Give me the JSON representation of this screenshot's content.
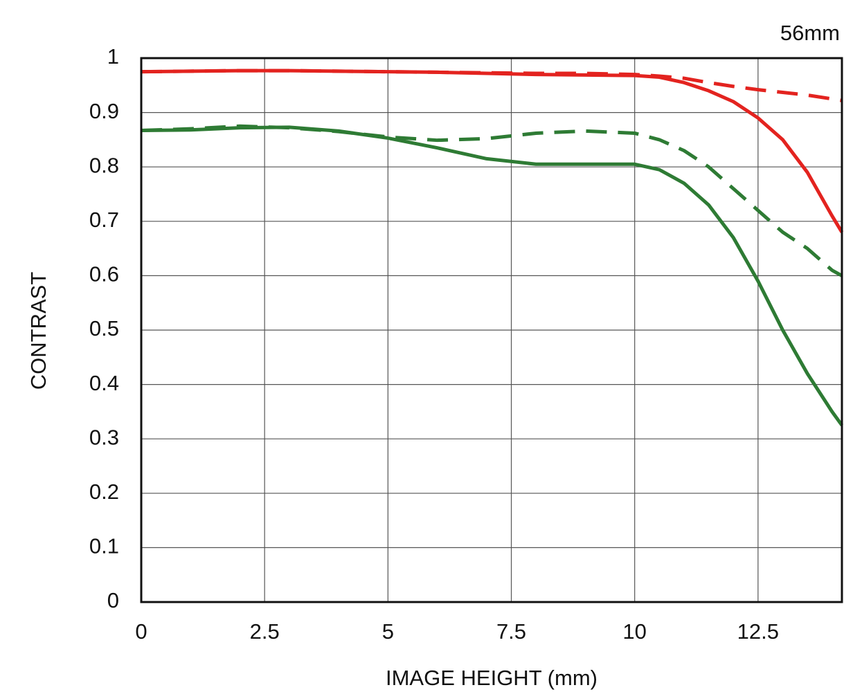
{
  "chart_data": {
    "type": "line",
    "annotation": "56mm",
    "x_label": "IMAGE HEIGHT (mm)",
    "y_label": "CONTRAST",
    "x": [
      0,
      1,
      2,
      3,
      4,
      5,
      6,
      7,
      8,
      9,
      10,
      10.5,
      11,
      11.5,
      12,
      12.5,
      13,
      13.5,
      14,
      14.2
    ],
    "series": [
      {
        "color": "#e3231f",
        "style": "solid",
        "values": [
          0.975,
          0.976,
          0.977,
          0.977,
          0.976,
          0.975,
          0.974,
          0.972,
          0.97,
          0.969,
          0.968,
          0.965,
          0.955,
          0.94,
          0.92,
          0.89,
          0.85,
          0.79,
          0.71,
          0.68
        ]
      },
      {
        "color": "#e3231f",
        "style": "dashed",
        "values": [
          0.975,
          0.976,
          0.977,
          0.977,
          0.976,
          0.975,
          0.974,
          0.973,
          0.972,
          0.972,
          0.97,
          0.967,
          0.963,
          0.955,
          0.948,
          0.942,
          0.937,
          0.932,
          0.925,
          0.922
        ]
      },
      {
        "color": "#2e7b34",
        "style": "solid",
        "values": [
          0.867,
          0.868,
          0.872,
          0.873,
          0.866,
          0.853,
          0.835,
          0.815,
          0.805,
          0.805,
          0.805,
          0.795,
          0.77,
          0.73,
          0.67,
          0.59,
          0.5,
          0.42,
          0.35,
          0.325
        ]
      },
      {
        "color": "#2e7b34",
        "style": "dashed",
        "values": [
          0.867,
          0.87,
          0.875,
          0.872,
          0.865,
          0.855,
          0.849,
          0.852,
          0.862,
          0.866,
          0.862,
          0.85,
          0.83,
          0.8,
          0.76,
          0.72,
          0.68,
          0.65,
          0.61,
          0.6
        ]
      }
    ],
    "xlim": [
      0,
      14.2
    ],
    "xticks": [
      0,
      2.5,
      5,
      7.5,
      10,
      12.5
    ],
    "ylim": [
      0,
      1
    ],
    "yticks": [
      0,
      0.1,
      0.2,
      0.3,
      0.4,
      0.5,
      0.6,
      0.7,
      0.8,
      0.9,
      1
    ],
    "grid": true
  }
}
